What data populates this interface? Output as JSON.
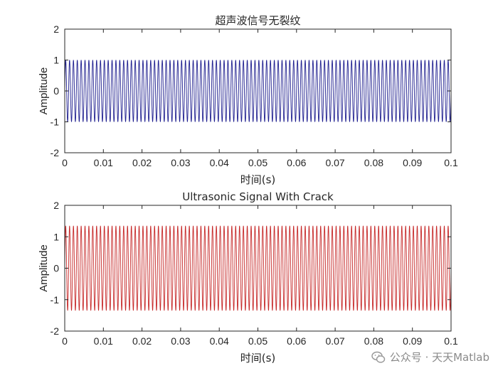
{
  "chart_data": [
    {
      "type": "line",
      "title": "超声波信号无裂纹",
      "xlabel": "时间(s)",
      "ylabel": "Amplitude",
      "xlim": [
        0,
        0.1
      ],
      "ylim": [
        -2,
        2
      ],
      "xticks": [
        "0",
        "0.01",
        "0.02",
        "0.03",
        "0.04",
        "0.05",
        "0.06",
        "0.07",
        "0.08",
        "0.09",
        "0.1"
      ],
      "yticks": [
        "-2",
        "-1",
        "0",
        "1",
        "2"
      ],
      "grid": false,
      "series": [
        {
          "color": "#1f1f8f",
          "amplitude": 1.0,
          "cycles": 100
        }
      ]
    },
    {
      "type": "line",
      "title": "Ultrasonic Signal With Crack",
      "xlabel": "时间(s)",
      "ylabel": "Amplitude",
      "xlim": [
        0,
        0.1
      ],
      "ylim": [
        -2,
        2
      ],
      "xticks": [
        "0",
        "0.01",
        "0.02",
        "0.03",
        "0.04",
        "0.05",
        "0.06",
        "0.07",
        "0.08",
        "0.09",
        "0.1"
      ],
      "yticks": [
        "-2",
        "-1",
        "0",
        "1",
        "2"
      ],
      "grid": false,
      "series": [
        {
          "color": "#c62828",
          "amplitude": 1.35,
          "cycles": 100
        }
      ]
    }
  ],
  "watermark": {
    "text": "公众号 · 天天Matlab",
    "icon": "wechat-icon"
  }
}
